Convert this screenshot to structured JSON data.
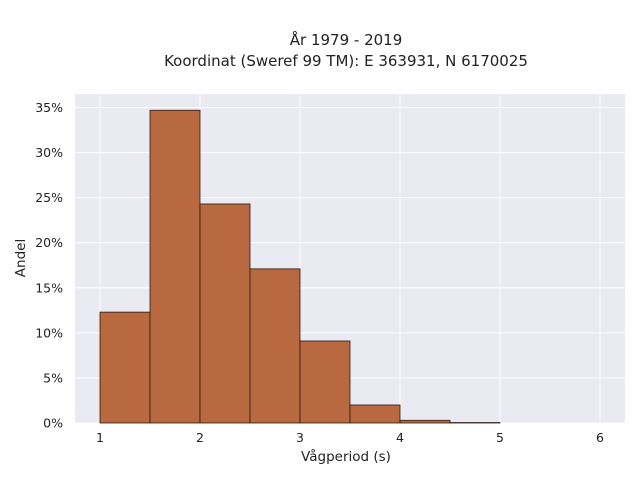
{
  "chart_data": {
    "type": "bar",
    "title_line1": "År 1979 - 2019",
    "title_line2": "Koordinat (Sweref 99 TM): E 363931, N 6170025",
    "xlabel": "Vågperiod (s)",
    "ylabel": "Andel",
    "bin_width": 0.5,
    "bins": [
      {
        "start": 1.0,
        "value": 12.3
      },
      {
        "start": 1.5,
        "value": 34.7
      },
      {
        "start": 2.0,
        "value": 24.3
      },
      {
        "start": 2.5,
        "value": 17.1
      },
      {
        "start": 3.0,
        "value": 9.1
      },
      {
        "start": 3.5,
        "value": 2.0
      },
      {
        "start": 4.0,
        "value": 0.3
      },
      {
        "start": 4.5,
        "value": 0.05
      },
      {
        "start": 5.0,
        "value": 0.0
      },
      {
        "start": 5.5,
        "value": 0.0
      }
    ],
    "xlim": [
      0.75,
      6.25
    ],
    "ylim": [
      0,
      36.5
    ],
    "x_ticks": [
      1,
      2,
      3,
      4,
      5,
      6
    ],
    "x_tick_labels": [
      "1",
      "2",
      "3",
      "4",
      "5",
      "6"
    ],
    "y_ticks": [
      0,
      5,
      10,
      15,
      20,
      25,
      30,
      35
    ],
    "y_tick_labels": [
      "0%",
      "5%",
      "10%",
      "15%",
      "20%",
      "25%",
      "30%",
      "35%"
    ],
    "grid": true,
    "colors": {
      "bar_fill": "#b8693f",
      "bar_edge": "#2e1a10",
      "plot_background": "#eaeaf2",
      "grid": "#ffffff"
    }
  }
}
